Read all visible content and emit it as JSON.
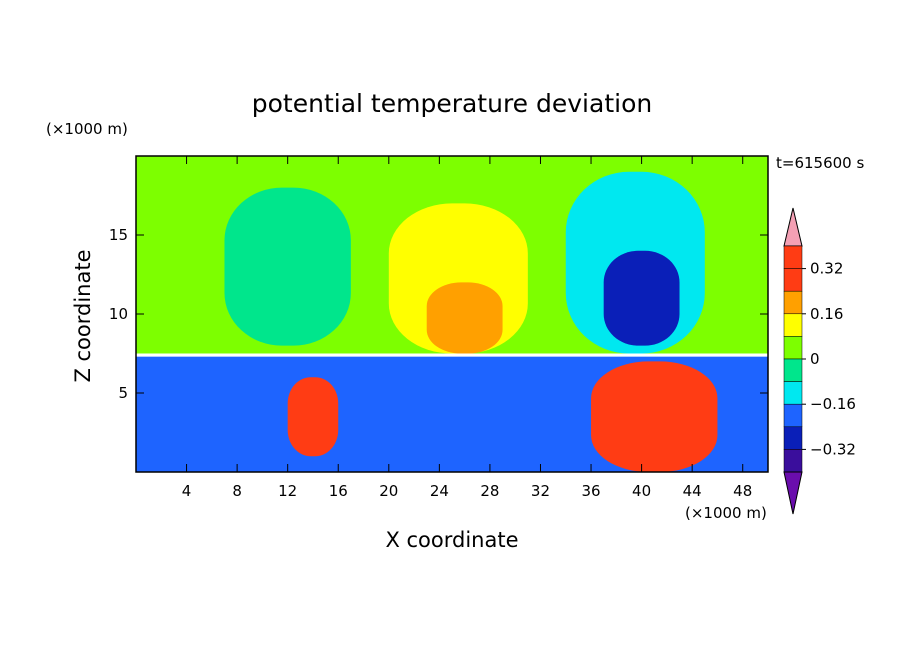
{
  "chart_data": {
    "type": "heatmap",
    "title": "potential temperature deviation",
    "xlabel": "X coordinate",
    "ylabel": "Z coordinate",
    "x_unit": "(×1000 m)",
    "y_unit": "(×1000 m)",
    "time_label": "t=615600 s",
    "xlim": [
      0,
      50
    ],
    "ylim": [
      0,
      20
    ],
    "x_ticks": [
      4,
      8,
      12,
      16,
      20,
      24,
      28,
      32,
      36,
      40,
      44,
      48
    ],
    "y_ticks": [
      5,
      10,
      15
    ],
    "colorbar": {
      "levels": [
        -0.4,
        -0.32,
        -0.24,
        -0.16,
        -0.08,
        0,
        0.08,
        0.16,
        0.24,
        0.32,
        0.4
      ],
      "tick_labels": [
        "0.32",
        "0.16",
        "0",
        "−0.16",
        "−0.32"
      ],
      "tick_values": [
        0.32,
        0.16,
        0,
        -0.16,
        -0.32
      ],
      "colors": [
        "#6a0dad",
        "#3a0e9c",
        "#0a1fb8",
        "#1e64ff",
        "#00e8f0",
        "#00e68c",
        "#7dff00",
        "#ffff00",
        "#ffa000",
        "#ff3c14",
        "#ff3c14",
        "#f4a0b4"
      ],
      "extend": "both"
    },
    "regions": [
      {
        "x": [
          0,
          50
        ],
        "z": [
          7.5,
          20
        ],
        "value": 0.02
      },
      {
        "x": [
          7,
          17
        ],
        "z": [
          8,
          18
        ],
        "value": -0.04
      },
      {
        "x": [
          20,
          31
        ],
        "z": [
          7.5,
          17
        ],
        "value": 0.14
      },
      {
        "x": [
          23,
          29
        ],
        "z": [
          7.5,
          12
        ],
        "value": 0.2
      },
      {
        "x": [
          34,
          45
        ],
        "z": [
          7.5,
          19
        ],
        "value": -0.12
      },
      {
        "x": [
          37,
          43
        ],
        "z": [
          8,
          14
        ],
        "value": -0.26
      },
      {
        "x": [
          0,
          50
        ],
        "z": [
          0,
          7.3
        ],
        "value": -0.2
      },
      {
        "x": [
          12,
          16
        ],
        "z": [
          1,
          6
        ],
        "value": 0.3
      },
      {
        "x": [
          36,
          46
        ],
        "z": [
          0,
          7
        ],
        "value": 0.3
      }
    ]
  }
}
